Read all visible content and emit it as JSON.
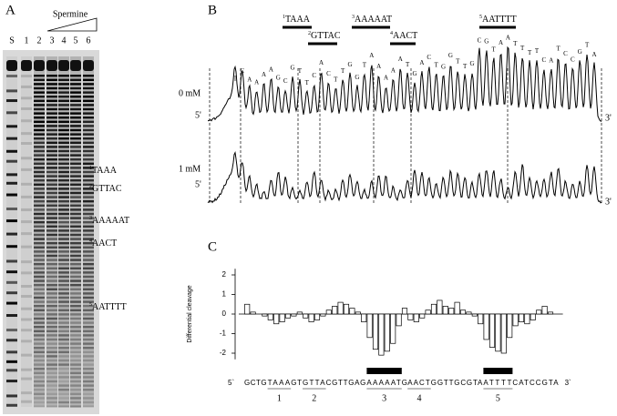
{
  "panel_a": {
    "label": "A",
    "treatment": "Spermine",
    "lanes": [
      "S",
      "1",
      "2",
      "3",
      "4",
      "5",
      "6"
    ],
    "sites": [
      {
        "number": "1",
        "text": "TAAA"
      },
      {
        "number": "2",
        "text": "GTTAC"
      },
      {
        "number": "3",
        "text": "AAAAAT"
      },
      {
        "number": "4",
        "text": "AACT"
      },
      {
        "number": "5",
        "text": "AATTTT"
      }
    ]
  },
  "panel_b": {
    "label": "B",
    "sites": [
      {
        "number": "1",
        "text": "TAAA"
      },
      {
        "number": "2",
        "text": "GTTAC"
      },
      {
        "number": "3",
        "text": "AAAAAT"
      },
      {
        "number": "4",
        "text": "AACT"
      },
      {
        "number": "5",
        "text": "AATTTT"
      }
    ],
    "rows": [
      {
        "label": "0 mM",
        "five": "5'",
        "three": "3'"
      },
      {
        "label": "1 mM",
        "five": "5'",
        "three": "3'"
      }
    ],
    "peak_letters": [
      "T",
      "C",
      "A",
      "A",
      "A",
      "A",
      "G",
      "C",
      "G",
      "T",
      "T",
      "C",
      "A",
      "C",
      "T",
      "T",
      "G",
      "G",
      "T",
      "A",
      "A",
      "A",
      "A",
      "A",
      "T",
      "G",
      "A",
      "C",
      "T",
      "G",
      "G",
      "T",
      "T",
      "G",
      "C",
      "G",
      "T",
      "A",
      "A",
      "T",
      "T",
      "T",
      "T",
      "C",
      "A",
      "T",
      "C",
      "C",
      "G",
      "T",
      "A"
    ]
  },
  "chart_data": {
    "type": "bar",
    "label": "C",
    "ylabel": "Differential cleavage",
    "values": [
      0.5,
      0.1,
      0.0,
      -0.1,
      -0.3,
      -0.5,
      -0.4,
      -0.2,
      -0.1,
      0.1,
      -0.2,
      -0.4,
      -0.3,
      -0.1,
      0.2,
      0.4,
      0.6,
      0.5,
      0.3,
      0.1,
      -0.4,
      -1.2,
      -1.8,
      -2.1,
      -1.9,
      -1.5,
      -0.6,
      0.3,
      -0.3,
      -0.4,
      -0.2,
      0.2,
      0.5,
      0.7,
      0.4,
      0.3,
      0.6,
      0.2,
      0.1,
      -0.1,
      -0.5,
      -1.3,
      -1.7,
      -1.9,
      -2.0,
      -1.2,
      -0.6,
      -0.4,
      -0.5,
      -0.3,
      0.2,
      0.4,
      0.1,
      0.0
    ],
    "color": "#ffffff",
    "edge": "#000000",
    "ylim": [
      -2.5,
      2.5
    ],
    "yticks": [
      -2,
      -1,
      0,
      1,
      2
    ],
    "sequence": {
      "five": "5`",
      "three": "3`",
      "segments": [
        {
          "text": "GCTG"
        },
        {
          "text": "TAAA",
          "site": "1"
        },
        {
          "text": "GT"
        },
        {
          "text": "GTTA",
          "site": "2"
        },
        {
          "text": "CGTTGAG"
        },
        {
          "text": "AAAAAT",
          "site": "3",
          "marked": true
        },
        {
          "text": "G"
        },
        {
          "text": "AACT",
          "site": "4"
        },
        {
          "text": "GGTTGCGTA"
        },
        {
          "text": "ATTTT",
          "site": "5",
          "marked": true
        },
        {
          "text": "CATCCGTA"
        }
      ]
    }
  }
}
